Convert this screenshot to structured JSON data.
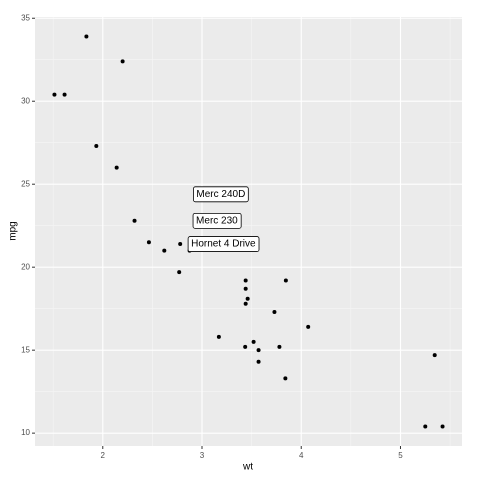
{
  "chart_data": {
    "type": "scatter",
    "x_label": "wt",
    "y_label": "mpg",
    "x": [
      2.62,
      2.875,
      2.32,
      3.215,
      3.44,
      3.46,
      3.57,
      3.19,
      3.15,
      3.44,
      3.44,
      4.07,
      3.73,
      3.78,
      5.25,
      5.424,
      5.345,
      2.2,
      1.615,
      1.835,
      2.465,
      3.52,
      3.435,
      3.84,
      3.845,
      1.935,
      2.14,
      1.513,
      3.17,
      2.77,
      3.57,
      2.78
    ],
    "values": [
      21.0,
      21.0,
      22.8,
      21.4,
      18.7,
      18.1,
      14.3,
      24.4,
      22.8,
      19.2,
      17.8,
      16.4,
      17.3,
      15.2,
      10.4,
      10.4,
      14.7,
      32.4,
      30.4,
      33.9,
      21.5,
      15.5,
      15.2,
      13.3,
      19.2,
      27.3,
      26.0,
      30.4,
      15.8,
      19.7,
      15.0,
      21.4
    ],
    "color": "#000000",
    "labels": [
      {
        "text": "Merc 240D",
        "x": 3.19,
        "y": 24.4
      },
      {
        "text": "Merc 230",
        "x": 3.15,
        "y": 22.8
      },
      {
        "text": "Hornet 4 Drive",
        "x": 3.215,
        "y": 21.4
      }
    ],
    "xlim": [
      1.317,
      5.62
    ],
    "ylim": [
      9.225,
      35.075
    ],
    "xticks": [
      2,
      3,
      4,
      5
    ],
    "yticks": [
      10,
      15,
      20,
      25,
      30,
      35
    ],
    "grid": true
  }
}
